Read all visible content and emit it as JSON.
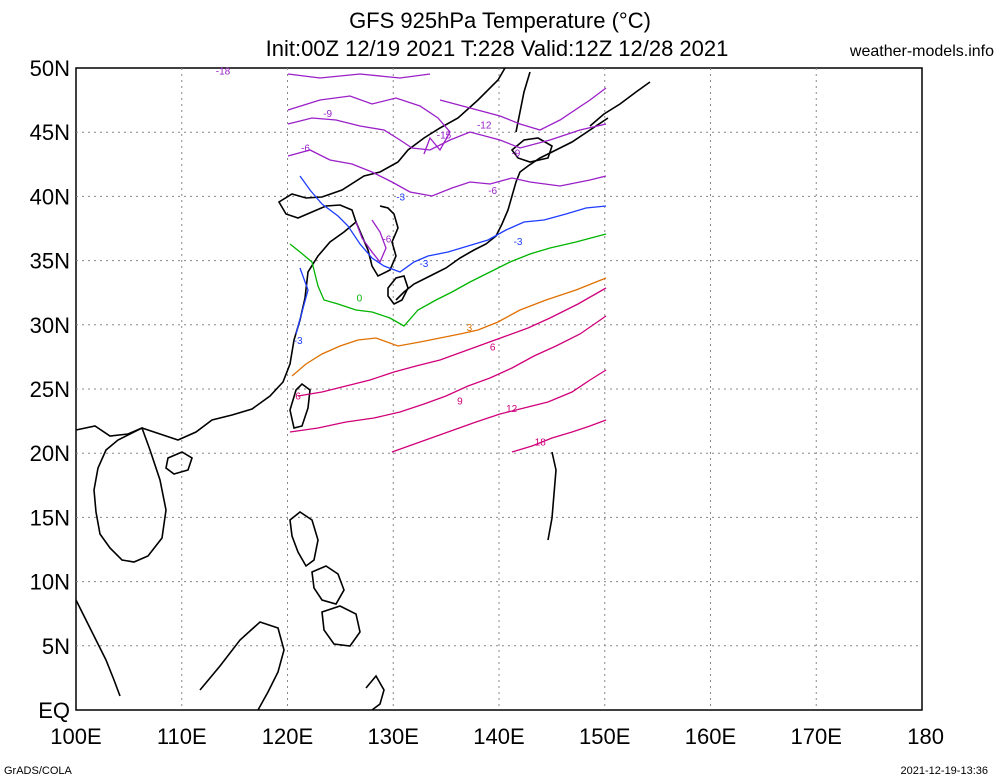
{
  "title": {
    "line1": "GFS 925hPa Temperature (°C)",
    "line2": "Init:00Z 12/19 2021 T:228 Valid:12Z 12/28 2021",
    "site": "weather-models.info"
  },
  "footer": {
    "left": "GrADS/COLA",
    "right": "2021-12-19-13:36"
  },
  "axes": {
    "x_ticks": [
      "100E",
      "110E",
      "120E",
      "130E",
      "140E",
      "150E",
      "160E",
      "170E",
      "180"
    ],
    "y_ticks": [
      "50N",
      "45N",
      "40N",
      "35N",
      "30N",
      "25N",
      "20N",
      "15N",
      "10N",
      "5N",
      "EQ"
    ],
    "lon_range": [
      100,
      180
    ],
    "lat_range": [
      0,
      50
    ],
    "grid": "dotted"
  },
  "contour_colors": {
    "-18": "#9b1fc8",
    "-15": "#9b1fc8",
    "-12": "#9b1fc8",
    "-9": "#9b1fc8",
    "-6": "#9b1fc8",
    "-3": "#1e3cff",
    "0": "#00b400",
    "3": "#e07000",
    "6": "#d0007a",
    "9": "#d0007a",
    "12": "#d0007a",
    "18": "#d0007a"
  },
  "contour_labels": [
    {
      "text": "-18",
      "lon": 113.9,
      "lat": 49.5,
      "color": "#9b1fc8"
    },
    {
      "text": "-9",
      "lon": 123.8,
      "lat": 46.2,
      "color": "#9b1fc8"
    },
    {
      "text": "-12",
      "lon": 138.6,
      "lat": 45.3,
      "color": "#9b1fc8"
    },
    {
      "text": "-15",
      "lon": 134.8,
      "lat": 44.5,
      "color": "#9b1fc8"
    },
    {
      "text": "-6",
      "lon": 121.7,
      "lat": 43.5,
      "color": "#9b1fc8"
    },
    {
      "text": "-9",
      "lon": 141.6,
      "lat": 43.1,
      "color": "#9b1fc8"
    },
    {
      "text": "-6",
      "lon": 139.4,
      "lat": 40.2,
      "color": "#9b1fc8"
    },
    {
      "text": "-3",
      "lon": 130.7,
      "lat": 39.7,
      "color": "#1e3cff"
    },
    {
      "text": "-6",
      "lon": 129.4,
      "lat": 36.4,
      "color": "#9b1fc8"
    },
    {
      "text": "-3",
      "lon": 141.8,
      "lat": 36.2,
      "color": "#1e3cff"
    },
    {
      "text": "-3",
      "lon": 132.9,
      "lat": 34.5,
      "color": "#1e3cff"
    },
    {
      "text": "0",
      "lon": 126.8,
      "lat": 31.8,
      "color": "#00b400"
    },
    {
      "text": "-3",
      "lon": 121.0,
      "lat": 28.5,
      "color": "#1e3cff"
    },
    {
      "text": "3",
      "lon": 137.2,
      "lat": 29.5,
      "color": "#e07000"
    },
    {
      "text": "6",
      "lon": 139.4,
      "lat": 28.0,
      "color": "#d0007a"
    },
    {
      "text": "6",
      "lon": 121.0,
      "lat": 24.2,
      "color": "#d0007a"
    },
    {
      "text": "9",
      "lon": 136.3,
      "lat": 23.8,
      "color": "#d0007a"
    },
    {
      "text": "12",
      "lon": 141.2,
      "lat": 23.2,
      "color": "#d0007a"
    },
    {
      "text": "18",
      "lon": 143.9,
      "lat": 20.6,
      "color": "#d0007a"
    }
  ]
}
